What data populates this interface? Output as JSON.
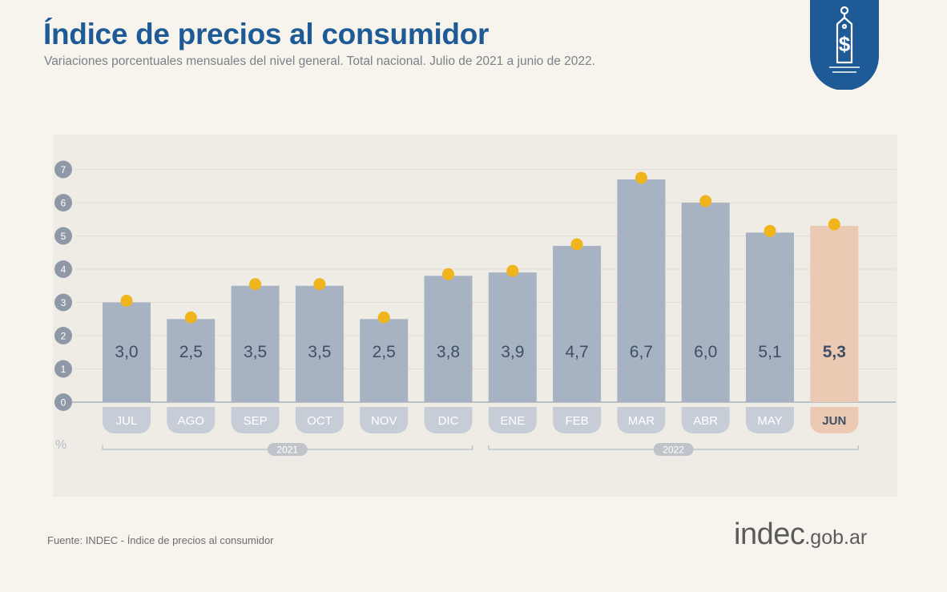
{
  "header": {
    "title": "Índice de precios al consumidor",
    "subtitle": "Variaciones porcentuales mensuales del nivel general. Total nacional. Julio de 2021 a junio de 2022."
  },
  "badge": {
    "icon": "price-tag-dollar-icon",
    "color": "#1e5a96"
  },
  "chart_data": {
    "type": "bar",
    "categories": [
      "JUL",
      "AGO",
      "SEP",
      "OCT",
      "NOV",
      "DIC",
      "ENE",
      "FEB",
      "MAR",
      "ABR",
      "MAY",
      "JUN"
    ],
    "values": [
      3.0,
      2.5,
      3.5,
      3.5,
      2.5,
      3.8,
      3.9,
      4.7,
      6.7,
      6.0,
      5.1,
      5.3
    ],
    "value_labels": [
      "3,0",
      "2,5",
      "3,5",
      "3,5",
      "2,5",
      "3,8",
      "3,9",
      "4,7",
      "6,7",
      "6,0",
      "5,1",
      "5,3"
    ],
    "highlight_index": 11,
    "yticks": [
      "0",
      "1",
      "2",
      "3",
      "4",
      "5",
      "6",
      "7"
    ],
    "ylim": [
      0,
      7
    ],
    "yunit": "%",
    "year_groups": [
      {
        "label": "2021",
        "from": 0,
        "to": 5
      },
      {
        "label": "2022",
        "from": 6,
        "to": 11
      }
    ],
    "grid": true,
    "colors": {
      "bar": "#a7b3c3",
      "highlight_bar": "#ecc9b3",
      "dot": "#f0b41c",
      "label_text": "#3f4f64",
      "axis_badge": "#8f98a6",
      "pill": "#c7cdd7",
      "highlight_pill": "#ecc9b3"
    }
  },
  "footer": {
    "source": "Fuente: INDEC - Índice de precios al consumidor",
    "logo_brand": "indec",
    "logo_domain": ".gob.ar"
  }
}
